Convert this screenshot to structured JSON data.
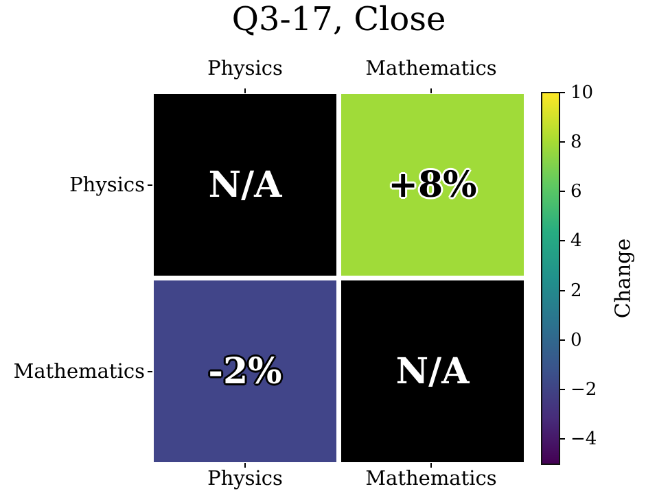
{
  "chart_data": {
    "type": "heatmap",
    "title": "Q3-17, Close",
    "x_categories": [
      "Physics",
      "Mathematics"
    ],
    "y_categories": [
      "Physics",
      "Mathematics"
    ],
    "values": [
      [
        null,
        8
      ],
      [
        -2,
        null
      ]
    ],
    "cell_labels": [
      [
        "N/A",
        "+8%"
      ],
      [
        "-2%",
        "N/A"
      ]
    ],
    "cell_colors": [
      [
        "#000000",
        "#a0db39"
      ],
      [
        "#414589",
        "#000000"
      ]
    ],
    "cell_text_colors": [
      [
        "#ffffff",
        "#000000"
      ],
      [
        "#ffffff",
        "#ffffff"
      ]
    ],
    "cell_text_outline": [
      [
        "none",
        "#ffffff"
      ],
      [
        "#000000",
        "none"
      ]
    ],
    "colormap": "viridis",
    "grid_gap_color": "#ffffff",
    "colorbar": {
      "label": "Change",
      "ticks": [
        "10",
        "8",
        "6",
        "4",
        "2",
        "0",
        "−2",
        "−4"
      ],
      "tick_values": [
        10,
        8,
        6,
        4,
        2,
        0,
        -2,
        -4
      ],
      "vmin": -5,
      "vmax": 10,
      "gradient_stops_bottom_to_top": [
        "#440154",
        "#472d7b",
        "#3b528b",
        "#2c728e",
        "#21918c",
        "#27ad81",
        "#5ec962",
        "#aadc32",
        "#fde725"
      ]
    }
  }
}
